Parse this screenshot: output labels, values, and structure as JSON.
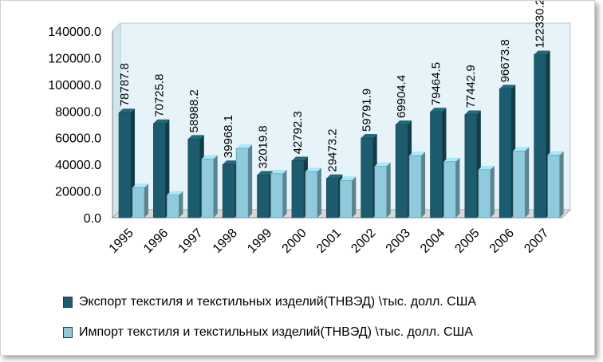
{
  "chart_data": {
    "type": "bar",
    "categories": [
      "1995",
      "1996",
      "1997",
      "1998",
      "1999",
      "2000",
      "2001",
      "2002",
      "2003",
      "2004",
      "2005",
      "2006",
      "2007"
    ],
    "series": [
      {
        "name": "Экспорт текстиля и текстильных изделий(ТНВЭД) \\тыс. долл. США",
        "color": "#1d5c6e",
        "values": [
          78787.8,
          70725.8,
          58988.2,
          39968.1,
          32019.8,
          42792.3,
          29473.2,
          59791.9,
          69904.4,
          79464.5,
          77442.9,
          96673.8,
          122330.2
        ],
        "labels": [
          "78787.8",
          "70725.8",
          "58988.2",
          "39968.1",
          "32019.8",
          "42792.3",
          "29473.2",
          "59791.9",
          "69904.4",
          "79464.5",
          "77442.9",
          "96673.8",
          "122330.2"
        ]
      },
      {
        "name": "Импорт текстиля и текстильных изделий(ТНВЭД) \\тыс. долл. США",
        "color": "#8fcbdc",
        "values": [
          22500,
          17000,
          44000,
          52000,
          33000,
          34500,
          28000,
          38500,
          46500,
          42000,
          36000,
          50000,
          47000
        ]
      }
    ],
    "yticks": [
      "0.0",
      "20000.0",
      "40000.0",
      "60000.0",
      "80000.0",
      "100000.0",
      "120000.0",
      "140000.0"
    ],
    "ylim": [
      0,
      140000
    ],
    "grid": false,
    "legend_position": "bottom",
    "background": "#e6f4fa"
  }
}
